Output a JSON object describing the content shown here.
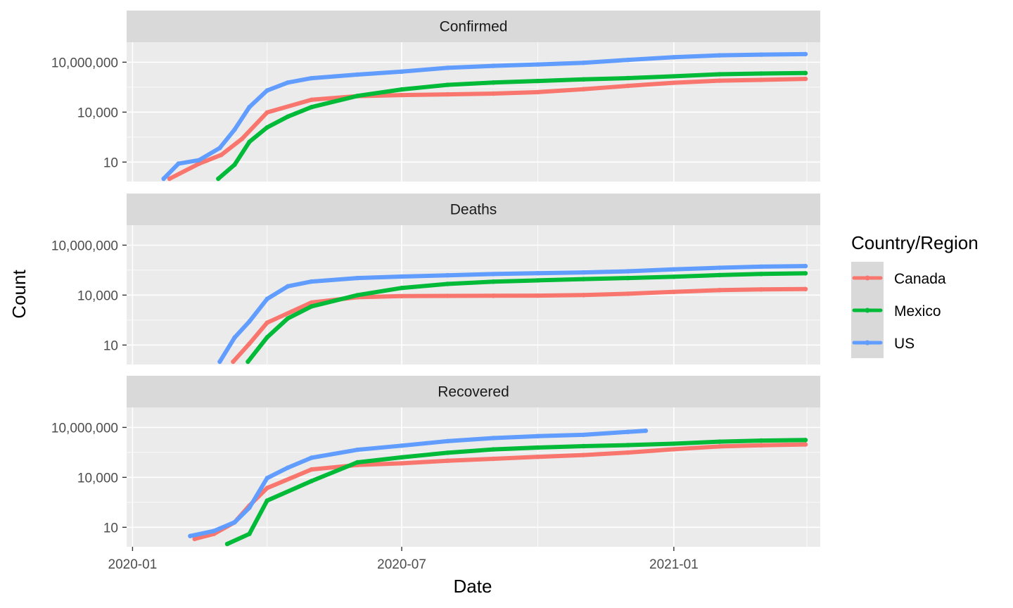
{
  "chart_data": {
    "type": "line",
    "xlabel": "Date",
    "ylabel": "Count",
    "y_scale": "log10",
    "x_ticks": [
      "2020-01",
      "2020-07",
      "2021-01"
    ],
    "y_ticks": [
      {
        "value": 10,
        "label": "10"
      },
      {
        "value": 10000,
        "label": "10,000"
      },
      {
        "value": 10000000,
        "label": "10,000,000"
      }
    ],
    "x_range": [
      "2019-12-28",
      "2021-04-10"
    ],
    "grid": true,
    "legend": {
      "title": "Country/Region",
      "position": "right",
      "entries": [
        {
          "name": "Canada",
          "color": "#F8766D"
        },
        {
          "name": "Mexico",
          "color": "#00BA38"
        },
        {
          "name": "US",
          "color": "#619CFF"
        }
      ]
    },
    "panels": [
      {
        "title": "Confirmed",
        "series": [
          {
            "name": "US",
            "points": [
              [
                "2020-01-22",
                1
              ],
              [
                "2020-02-01",
                8
              ],
              [
                "2020-02-15",
                13
              ],
              [
                "2020-02-29",
                70
              ],
              [
                "2020-03-10",
                900
              ],
              [
                "2020-03-20",
                20000
              ],
              [
                "2020-04-01",
                200000
              ],
              [
                "2020-04-15",
                600000
              ],
              [
                "2020-05-01",
                1100000
              ],
              [
                "2020-06-01",
                1800000
              ],
              [
                "2020-07-01",
                2700000
              ],
              [
                "2020-08-01",
                4600000
              ],
              [
                "2020-09-01",
                6000000
              ],
              [
                "2020-10-01",
                7300000
              ],
              [
                "2020-11-01",
                9200000
              ],
              [
                "2020-12-01",
                13800000
              ],
              [
                "2021-01-01",
                20000000
              ],
              [
                "2021-02-01",
                26000000
              ],
              [
                "2021-03-01",
                28500000
              ],
              [
                "2021-03-31",
                30500000
              ]
            ]
          },
          {
            "name": "Mexico",
            "points": [
              [
                "2020-02-28",
                1
              ],
              [
                "2020-03-10",
                7
              ],
              [
                "2020-03-20",
                164
              ],
              [
                "2020-04-01",
                1200
              ],
              [
                "2020-04-15",
                5400
              ],
              [
                "2020-05-01",
                20000
              ],
              [
                "2020-06-01",
                94000
              ],
              [
                "2020-07-01",
                232000
              ],
              [
                "2020-08-01",
                435000
              ],
              [
                "2020-09-01",
                600000
              ],
              [
                "2020-10-01",
                740000
              ],
              [
                "2020-11-01",
                930000
              ],
              [
                "2020-12-01",
                1110000
              ],
              [
                "2021-01-01",
                1430000
              ],
              [
                "2021-02-01",
                1890000
              ],
              [
                "2021-03-01",
                2090000
              ],
              [
                "2021-03-31",
                2240000
              ]
            ]
          },
          {
            "name": "Canada",
            "points": [
              [
                "2020-01-26",
                1
              ],
              [
                "2020-02-15",
                8
              ],
              [
                "2020-03-01",
                27
              ],
              [
                "2020-03-15",
                250
              ],
              [
                "2020-04-01",
                9600
              ],
              [
                "2020-05-01",
                55000
              ],
              [
                "2020-06-01",
                92000
              ],
              [
                "2020-07-01",
                106000
              ],
              [
                "2020-08-01",
                117000
              ],
              [
                "2020-09-01",
                130000
              ],
              [
                "2020-10-01",
                160000
              ],
              [
                "2020-11-01",
                240000
              ],
              [
                "2020-12-01",
                380000
              ],
              [
                "2021-01-01",
                585000
              ],
              [
                "2021-02-01",
                780000
              ],
              [
                "2021-03-01",
                870000
              ],
              [
                "2021-03-31",
                990000
              ]
            ]
          }
        ]
      },
      {
        "title": "Deaths",
        "series": [
          {
            "name": "US",
            "points": [
              [
                "2020-02-29",
                1
              ],
              [
                "2020-03-10",
                28
              ],
              [
                "2020-03-20",
                260
              ],
              [
                "2020-04-01",
                5900
              ],
              [
                "2020-04-15",
                34000
              ],
              [
                "2020-05-01",
                65000
              ],
              [
                "2020-06-01",
                106000
              ],
              [
                "2020-07-01",
                130000
              ],
              [
                "2020-08-01",
                155000
              ],
              [
                "2020-09-01",
                184000
              ],
              [
                "2020-10-01",
                207000
              ],
              [
                "2020-11-01",
                231000
              ],
              [
                "2020-12-01",
                270000
              ],
              [
                "2021-01-01",
                350000
              ],
              [
                "2021-02-01",
                440000
              ],
              [
                "2021-03-01",
                515000
              ],
              [
                "2021-03-31",
                552000
              ]
            ]
          },
          {
            "name": "Mexico",
            "points": [
              [
                "2020-03-19",
                1
              ],
              [
                "2020-04-01",
                29
              ],
              [
                "2020-04-15",
                400
              ],
              [
                "2020-05-01",
                2100
              ],
              [
                "2020-06-01",
                10000
              ],
              [
                "2020-07-01",
                27000
              ],
              [
                "2020-08-01",
                47000
              ],
              [
                "2020-09-01",
                64000
              ],
              [
                "2020-10-01",
                77000
              ],
              [
                "2020-11-01",
                92000
              ],
              [
                "2020-12-01",
                106000
              ],
              [
                "2021-01-01",
                126000
              ],
              [
                "2021-02-01",
                160000
              ],
              [
                "2021-03-01",
                186000
              ],
              [
                "2021-03-31",
                203000
              ]
            ]
          },
          {
            "name": "Canada",
            "points": [
              [
                "2020-03-09",
                1
              ],
              [
                "2020-03-20",
                12
              ],
              [
                "2020-04-01",
                220
              ],
              [
                "2020-05-01",
                3600
              ],
              [
                "2020-06-01",
                7400
              ],
              [
                "2020-07-01",
                8700
              ],
              [
                "2020-08-01",
                8950
              ],
              [
                "2020-09-01",
                9150
              ],
              [
                "2020-10-01",
                9300
              ],
              [
                "2020-11-01",
                10100
              ],
              [
                "2020-12-01",
                12100
              ],
              [
                "2021-01-01",
                15600
              ],
              [
                "2021-02-01",
                19900
              ],
              [
                "2021-03-01",
                21900
              ],
              [
                "2021-03-31",
                22900
              ]
            ]
          }
        ]
      },
      {
        "title": "Recovered",
        "series": [
          {
            "name": "US",
            "points": [
              [
                "2020-02-09",
                3
              ],
              [
                "2020-02-25",
                6
              ],
              [
                "2020-03-10",
                20
              ],
              [
                "2020-03-20",
                150
              ],
              [
                "2020-04-01",
                9000
              ],
              [
                "2020-04-15",
                38000
              ],
              [
                "2020-05-01",
                150000
              ],
              [
                "2020-06-01",
                450000
              ],
              [
                "2020-07-01",
                800000
              ],
              [
                "2020-08-01",
                1500000
              ],
              [
                "2020-09-01",
                2300000
              ],
              [
                "2020-10-01",
                3000000
              ],
              [
                "2020-11-01",
                3600000
              ],
              [
                "2020-12-01",
                5400000
              ],
              [
                "2020-12-13",
                6300000
              ]
            ]
          },
          {
            "name": "Mexico",
            "points": [
              [
                "2020-03-05",
                1
              ],
              [
                "2020-03-20",
                4
              ],
              [
                "2020-04-01",
                400
              ],
              [
                "2020-05-01",
                6000
              ],
              [
                "2020-06-01",
                80000
              ],
              [
                "2020-07-01",
                160000
              ],
              [
                "2020-08-01",
                300000
              ],
              [
                "2020-09-01",
                480000
              ],
              [
                "2020-10-01",
                620000
              ],
              [
                "2020-11-01",
                750000
              ],
              [
                "2020-12-01",
                870000
              ],
              [
                "2021-01-01",
                1050000
              ],
              [
                "2021-02-01",
                1400000
              ],
              [
                "2021-03-01",
                1620000
              ],
              [
                "2021-03-31",
                1750000
              ]
            ]
          },
          {
            "name": "Canada",
            "points": [
              [
                "2020-02-12",
                2
              ],
              [
                "2020-02-25",
                4
              ],
              [
                "2020-03-10",
                20
              ],
              [
                "2020-03-20",
                200
              ],
              [
                "2020-04-01",
                2300
              ],
              [
                "2020-05-01",
                30000
              ],
              [
                "2020-06-01",
                55000
              ],
              [
                "2020-07-01",
                70000
              ],
              [
                "2020-08-01",
                100000
              ],
              [
                "2020-09-01",
                130000
              ],
              [
                "2020-10-01",
                170000
              ],
              [
                "2020-11-01",
                220000
              ],
              [
                "2020-12-01",
                310000
              ],
              [
                "2021-01-01",
                490000
              ],
              [
                "2021-02-01",
                720000
              ],
              [
                "2021-03-01",
                840000
              ],
              [
                "2021-03-31",
                950000
              ]
            ]
          }
        ]
      }
    ]
  }
}
